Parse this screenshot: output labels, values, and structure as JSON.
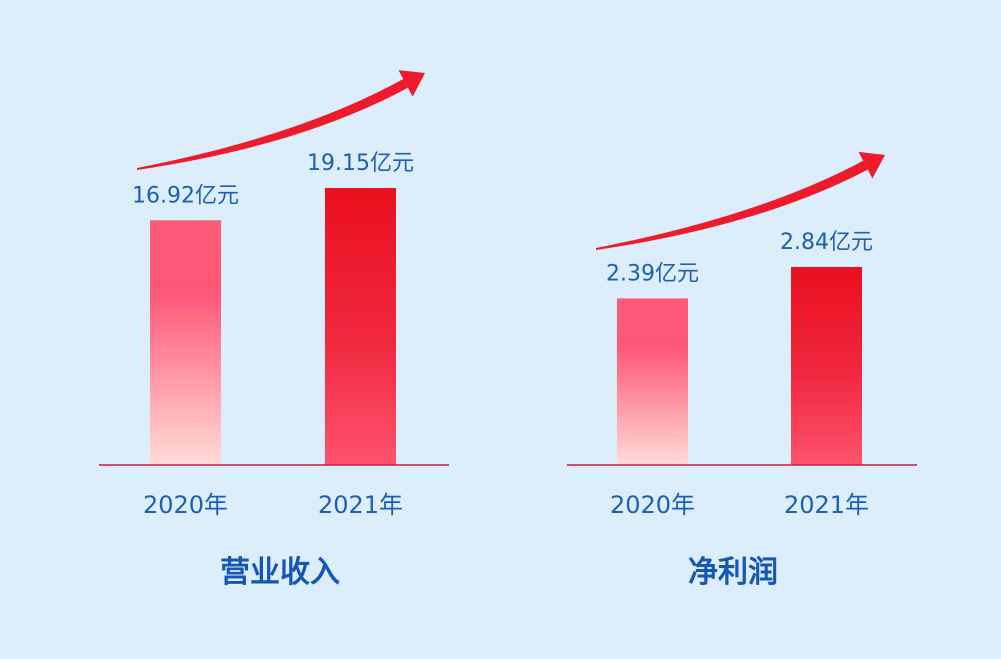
{
  "chart_data": [
    {
      "type": "bar",
      "title": "营业收入",
      "categories": [
        "2020年",
        "2021年"
      ],
      "values": [
        16.92,
        19.15
      ],
      "value_labels": [
        "16.92亿元",
        "19.15亿元"
      ],
      "unit": "亿元",
      "ylim": [
        0,
        21
      ],
      "grid": false,
      "legend": "none",
      "trend_arrow": true,
      "bar_colors": [
        "#ff5a78",
        "#e8101e"
      ]
    },
    {
      "type": "bar",
      "title": "净利润",
      "categories": [
        "2020年",
        "2021年"
      ],
      "values": [
        2.39,
        2.84
      ],
      "value_labels": [
        "2.39亿元",
        "2.84亿元"
      ],
      "unit": "亿元",
      "ylim": [
        0,
        3.5
      ],
      "grid": false,
      "legend": "none",
      "trend_arrow": true,
      "bar_colors": [
        "#ff5a78",
        "#e8101e"
      ]
    }
  ],
  "colors": {
    "background": "#dcedfb",
    "text_blue": "#1d5fb0",
    "title_blue": "#1656b4",
    "baseline": "#c81d3a",
    "arrow": "#ee1b2c"
  }
}
